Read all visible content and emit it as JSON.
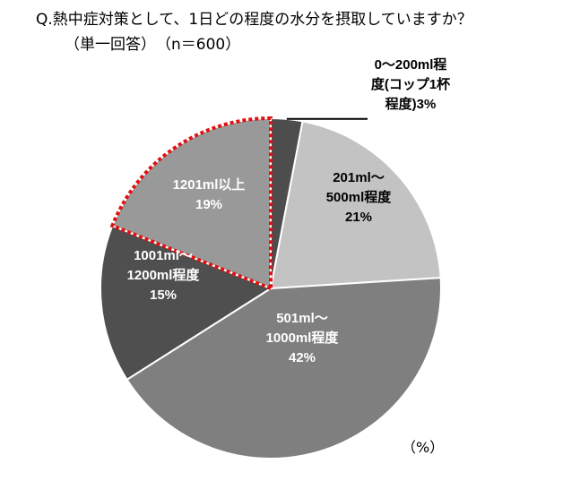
{
  "title": "Q.熱中症対策として、1日どの程度の水分を摂取していますか？",
  "subtitle": "（単一回答）　（n＝600）",
  "unit": "（%）",
  "chart_data": {
    "type": "pie",
    "categories": [
      "0〜200ml程度(コップ1杯程度)",
      "201ml〜500ml程度",
      "501ml〜1000ml程度",
      "1001ml〜1200ml程度",
      "1201ml以上"
    ],
    "values": [
      3,
      21,
      42,
      15,
      19
    ],
    "colors": [
      "#4d4d4d",
      "#c3c3c3",
      "#7f7f7f",
      "#4f4f4f",
      "#999999"
    ],
    "highlighted_category": "1201ml以上",
    "highlight_style": "red-dotted-outline",
    "labels": [
      [
        "0〜200ml程",
        "度(コップ1杯",
        "程度)3%"
      ],
      [
        "201ml〜",
        "500ml程度",
        "21%"
      ],
      [
        "501ml〜",
        "1000ml程度",
        "42%"
      ],
      [
        "1001ml〜",
        "1200ml程度",
        "15%"
      ],
      [
        "1201ml以上",
        "19%"
      ]
    ]
  }
}
